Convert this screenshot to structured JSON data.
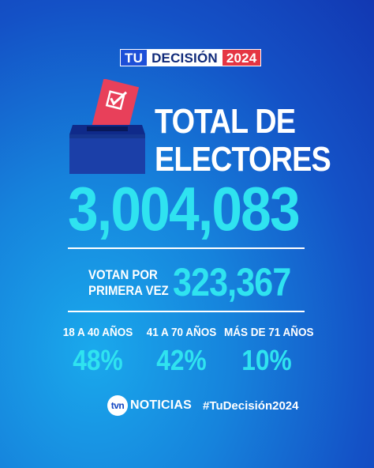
{
  "brand": {
    "part1": "TU",
    "part2": "DECISIÓN",
    "part3": "2024"
  },
  "headline": {
    "line1": "TOTAL DE",
    "line2": "ELECTORES"
  },
  "total_voters": "3,004,083",
  "first_time": {
    "label_line1": "VOTAN POR",
    "label_line2": "PRIMERA VEZ",
    "value": "323,367"
  },
  "age_groups": [
    {
      "label": "18 A 40 AÑOS",
      "percent": "48%"
    },
    {
      "label": "41 A 70 AÑOS",
      "percent": "42%"
    },
    {
      "label": "MÁS DE 71 AÑOS",
      "percent": "10%"
    }
  ],
  "footer": {
    "logo_mark": "tvn",
    "logo_text": "NOTICIAS",
    "hashtag": "#TuDecisión2024"
  },
  "colors": {
    "accent": "#2fe3f0",
    "brand_red": "#e53543",
    "box_blue": "#1b3fa8",
    "ballot_red": "#e8405a"
  }
}
